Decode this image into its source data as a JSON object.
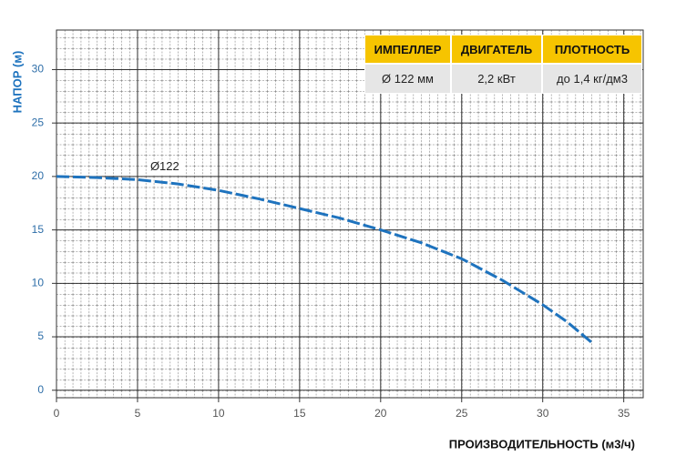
{
  "chart_data": {
    "type": "line",
    "x_label": "ПРОИЗВОДИТЕЛЬНОСТЬ (м3/ч)",
    "y_label": "НАПОР (м)",
    "xlim": [
      0,
      36.2
    ],
    "ylim": [
      -0.7,
      33.7
    ],
    "xticks": [
      0,
      5,
      10,
      15,
      20,
      25,
      30,
      35
    ],
    "yticks": [
      0,
      5,
      10,
      15,
      20,
      25,
      30
    ],
    "grid": true,
    "series": [
      {
        "name": "Ø122",
        "color": "#1e73be",
        "x": [
          0,
          2.5,
          5,
          7.5,
          10,
          12.5,
          15,
          17.5,
          20,
          22.5,
          25,
          27.5,
          30,
          31.5,
          33
        ],
        "values": [
          20,
          19.9,
          19.7,
          19.3,
          18.7,
          17.9,
          17,
          16.1,
          15,
          13.8,
          12.3,
          10.3,
          8,
          6.4,
          4.5
        ]
      }
    ]
  },
  "spec_table": {
    "headers": [
      "ИМПЕЛЛЕР",
      "ДВИГАТЕЛЬ",
      "ПЛОТНОСТЬ"
    ],
    "row": [
      "Ø 122 мм",
      "2,2 кВт",
      "до 1,4 кг/дм3"
    ]
  }
}
